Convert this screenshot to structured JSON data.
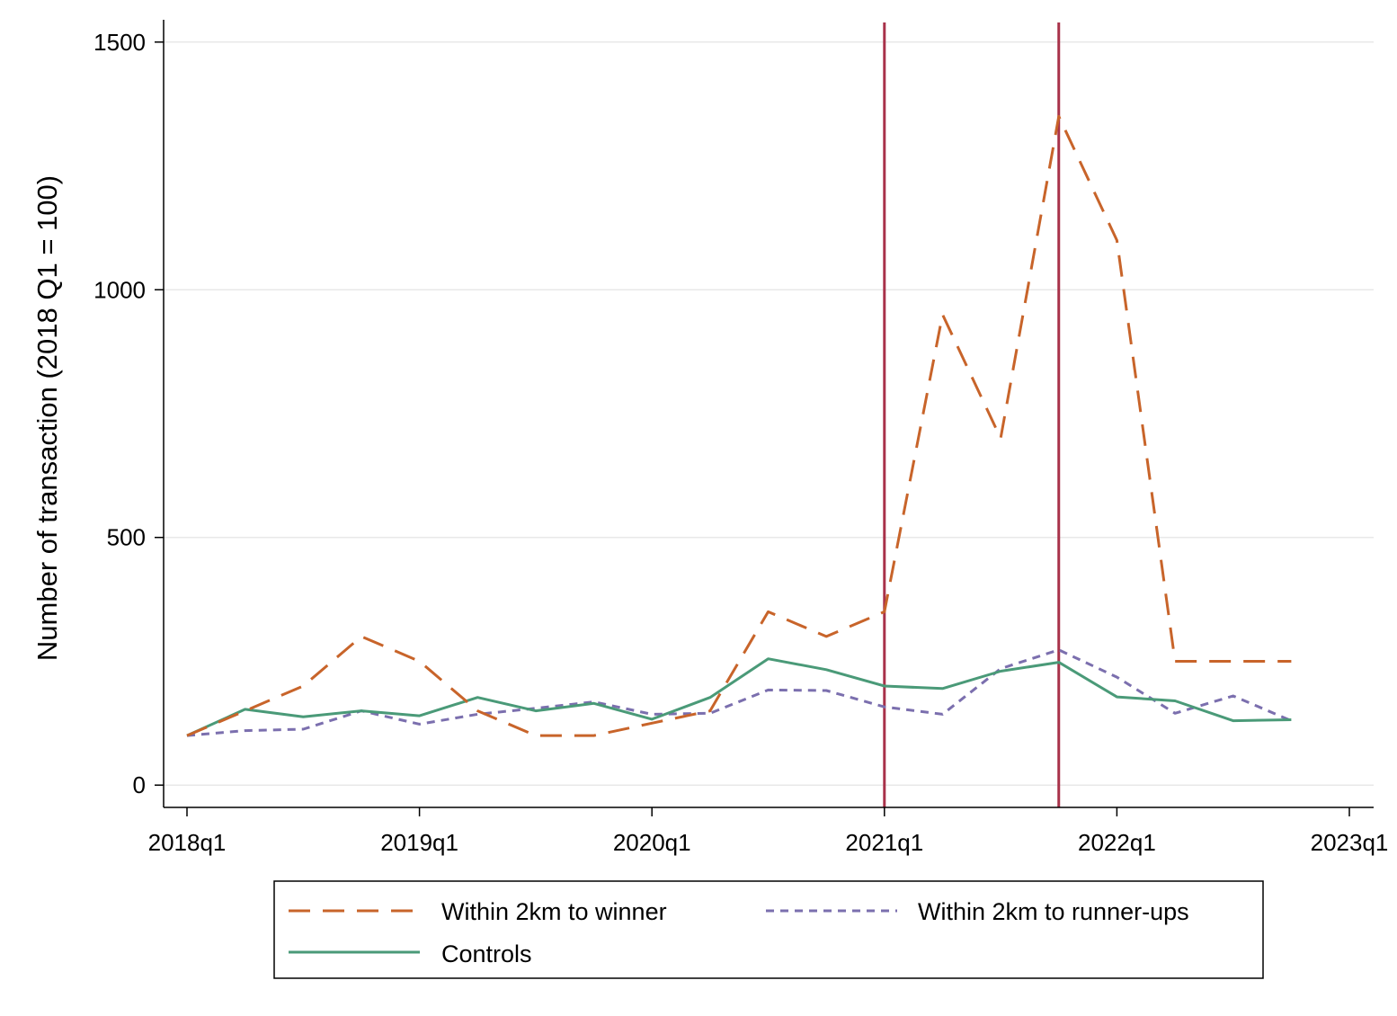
{
  "chart_data": {
    "type": "line",
    "title": "",
    "xlabel": "",
    "ylabel": "Number of transaction (2018 Q1 = 100)",
    "x_ticks": [
      "2018q1",
      "2019q1",
      "2020q1",
      "2021q1",
      "2022q1",
      "2023q1"
    ],
    "y_ticks": [
      "0",
      "500",
      "1000",
      "1500"
    ],
    "y_tick_values": [
      0,
      500,
      1000,
      1500
    ],
    "ylim": [
      -45,
      1545
    ],
    "x_quarters": [
      "2018q1",
      "2018q2",
      "2018q3",
      "2018q4",
      "2019q1",
      "2019q2",
      "2019q3",
      "2019q4",
      "2020q1",
      "2020q2",
      "2020q3",
      "2020q4",
      "2021q1",
      "2021q2",
      "2021q3",
      "2021q4",
      "2022q1",
      "2022q2",
      "2022q3",
      "2022q4"
    ],
    "xlim": [
      "2017q4",
      "2023q1"
    ],
    "grid": "horizontal",
    "legend_position": "bottom",
    "vlines": [
      "2021q1",
      "2021q4"
    ],
    "series": [
      {
        "name": "Within 2km to winner",
        "style": "long-dash",
        "color": "#C8642A",
        "values": [
          100,
          150,
          200,
          300,
          250,
          150,
          100,
          100,
          125,
          150,
          350,
          300,
          350,
          950,
          700,
          1350,
          1100,
          250,
          250,
          250
        ]
      },
      {
        "name": "Within 2km to runner-ups",
        "style": "short-dash",
        "color": "#7B6FAE",
        "values": [
          100,
          110,
          113,
          150,
          123,
          143,
          155,
          168,
          143,
          145,
          192,
          191,
          158,
          143,
          235,
          273,
          218,
          145,
          180,
          130
        ]
      },
      {
        "name": "Controls",
        "style": "solid",
        "color": "#4A9A78",
        "values": [
          100,
          153,
          138,
          150,
          140,
          177,
          150,
          165,
          133,
          177,
          255,
          233,
          200,
          195,
          230,
          248,
          178,
          170,
          130,
          132
        ]
      }
    ],
    "vline_color": "#A8324A",
    "grid_color": "#E8E8E8"
  }
}
